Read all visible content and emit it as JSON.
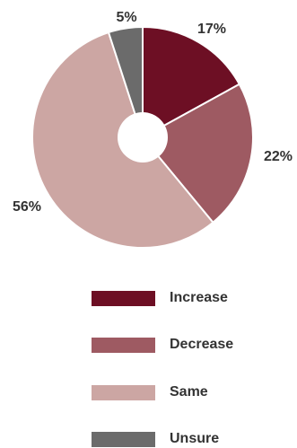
{
  "chart_data": {
    "type": "pie",
    "labels": [
      "Increase",
      "Decrease",
      "Same",
      "Unsure"
    ],
    "values": [
      17,
      22,
      56,
      5
    ],
    "value_labels": [
      "17%",
      "22%",
      "56%",
      "5%"
    ],
    "colors": [
      "#6d0f24",
      "#9e5a62",
      "#cca6a3",
      "#6b6b6b"
    ],
    "donut_hole": true,
    "legend_position": "bottom"
  }
}
